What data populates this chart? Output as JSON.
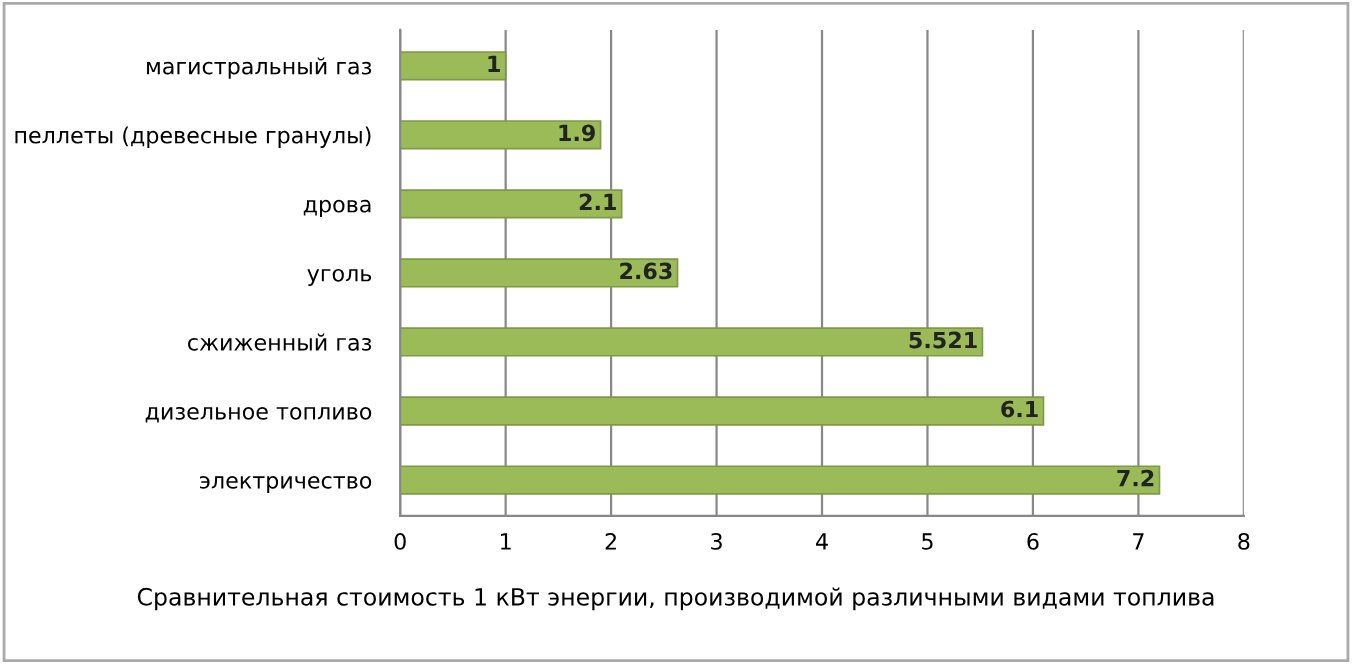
{
  "chart_data": {
    "type": "bar",
    "orientation": "horizontal",
    "xlabel": "Сравнительная стоимость 1 кВт энергии, производимой различными видами топлива",
    "categories": [
      "магистральный газ",
      "пеллеты (древесные гранулы)",
      "дрова",
      "уголь",
      "сжиженный газ",
      "дизельное топливо",
      "электричество"
    ],
    "values": [
      1,
      1.9,
      2.1,
      2.63,
      5.521,
      6.1,
      7.2
    ],
    "color": "#9bbb59",
    "xlim": [
      0,
      8
    ],
    "xticks": [
      0,
      1,
      2,
      3,
      4,
      5,
      6,
      7,
      8
    ],
    "grid": "x",
    "data_labels": true,
    "legend": false
  }
}
